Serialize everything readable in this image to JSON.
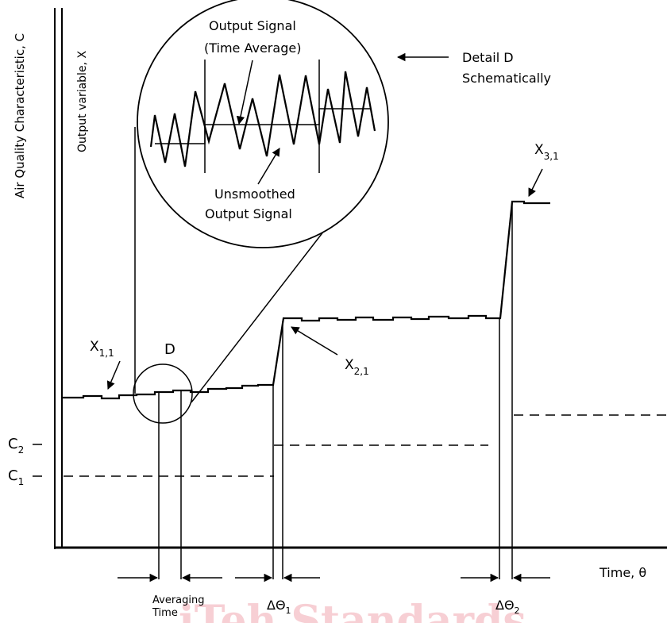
{
  "labels": {
    "y_axis_outer": "Air Quality Characteristic, C",
    "y_axis_inner": "Output variable, X",
    "x_axis": "Time, θ",
    "detail_callout_1": "Detail D",
    "detail_callout_2": "Schematically",
    "output_signal_1": "Output Signal",
    "output_signal_2": "(Time Average)",
    "unsmoothed_1": "Unsmoothed",
    "unsmoothed_2": "Output Signal",
    "detail_d": "D",
    "averaging_time_1": "Averaging",
    "averaging_time_2": "Time"
  },
  "symbols": {
    "x11": {
      "base": "X",
      "sub": "1,1"
    },
    "x21": {
      "base": "X",
      "sub": "2,1"
    },
    "x31": {
      "base": "X",
      "sub": "3,1"
    },
    "c1": {
      "base": "C",
      "sub": "1"
    },
    "c2": {
      "base": "C",
      "sub": "2"
    },
    "dtheta1": {
      "base": "ΔΘ",
      "sub": "1"
    },
    "dtheta2": {
      "base": "ΔΘ",
      "sub": "2"
    }
  },
  "watermark": "iTeh Standards",
  "colors": {
    "line": "#000000",
    "watermark": "#f7cfd4"
  }
}
